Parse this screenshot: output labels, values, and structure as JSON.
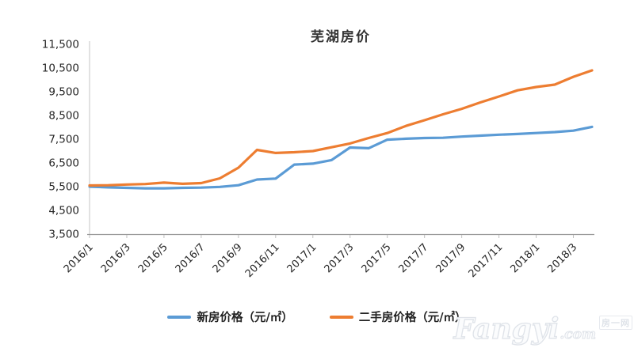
{
  "page": {
    "background": "#ffffff"
  },
  "chart_data": {
    "type": "line",
    "title": "芜湖房价",
    "x": [
      "2016/1",
      "2016/2",
      "2016/3",
      "2016/4",
      "2016/5",
      "2016/6",
      "2016/7",
      "2016/8",
      "2016/9",
      "2016/10",
      "2016/11",
      "2016/12",
      "2017/1",
      "2017/2",
      "2017/3",
      "2017/4",
      "2017/5",
      "2017/6",
      "2017/7",
      "2017/8",
      "2017/9",
      "2017/10",
      "2017/11",
      "2017/12",
      "2018/1",
      "2018/2",
      "2018/3",
      "2018/4"
    ],
    "x_label_every": 2,
    "x_tick_labels_shown": [
      "2016/1",
      "2016/3",
      "2016/5",
      "2016/7",
      "2016/9",
      "2016/11",
      "2017/1",
      "2017/3",
      "2017/5",
      "2017/7",
      "2017/9",
      "2017/11",
      "2018/1",
      "2018/3"
    ],
    "series": [
      {
        "name": "新房价格（元/㎡）",
        "color": "#5B9BD5",
        "values": [
          5500,
          5470,
          5450,
          5430,
          5430,
          5450,
          5460,
          5490,
          5560,
          5800,
          5840,
          6430,
          6470,
          6620,
          7150,
          7120,
          7480,
          7520,
          7550,
          7560,
          7610,
          7650,
          7690,
          7720,
          7760,
          7800,
          7860,
          8020
        ]
      },
      {
        "name": "二手房价格（元/㎡）",
        "color": "#ED7D31",
        "values": [
          5550,
          5560,
          5590,
          5610,
          5670,
          5620,
          5650,
          5850,
          6300,
          7050,
          6920,
          6950,
          7000,
          7160,
          7320,
          7550,
          7760,
          8060,
          8300,
          8550,
          8780,
          9050,
          9300,
          9560,
          9700,
          9800,
          10130,
          10400
        ]
      }
    ],
    "ylim": [
      3500,
      11500
    ],
    "y_tick_step": 1000,
    "y_tick_labels": [
      "3,500",
      "4,500",
      "5,500",
      "6,500",
      "7,500",
      "8,500",
      "9,500",
      "10,500",
      "11,500"
    ],
    "grid": false,
    "legend_position": "bottom",
    "axis_color": "#9a9a9a",
    "y_axis_color": "#c4c4c4",
    "tick_color": "#bfbfbf",
    "label_color": "#262626"
  },
  "watermark": {
    "brand": "Fangyi",
    "tld": ".com",
    "cjk": "房一网"
  }
}
